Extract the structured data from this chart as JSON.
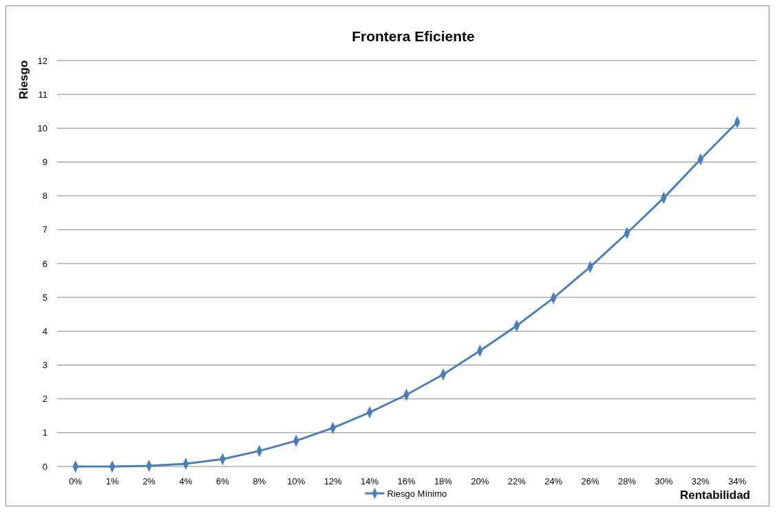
{
  "chart_data": {
    "type": "line",
    "title": "Frontera Eficiente",
    "xlabel": "Rentabilidad",
    "ylabel": "Riesgo",
    "categories": [
      "0%",
      "1%",
      "2%",
      "4%",
      "6%",
      "8%",
      "10%",
      "12%",
      "14%",
      "16%",
      "18%",
      "20%",
      "22%",
      "24%",
      "26%",
      "28%",
      "30%",
      "32%",
      "34%"
    ],
    "series": [
      {
        "name": "Riesgo Mínimo",
        "color": "#4a7ebb",
        "values": [
          0,
          0,
          0.02,
          0.08,
          0.22,
          0.46,
          0.76,
          1.14,
          1.6,
          2.12,
          2.72,
          3.42,
          4.16,
          4.98,
          5.9,
          6.9,
          7.94,
          9.08,
          10.18
        ]
      }
    ],
    "ylim": [
      0,
      12
    ],
    "yticks": [
      0,
      1,
      2,
      3,
      4,
      5,
      6,
      7,
      8,
      9,
      10,
      11,
      12
    ],
    "grid": "y",
    "legend": "bottom",
    "marker": "diamond",
    "line_style": "solid"
  }
}
